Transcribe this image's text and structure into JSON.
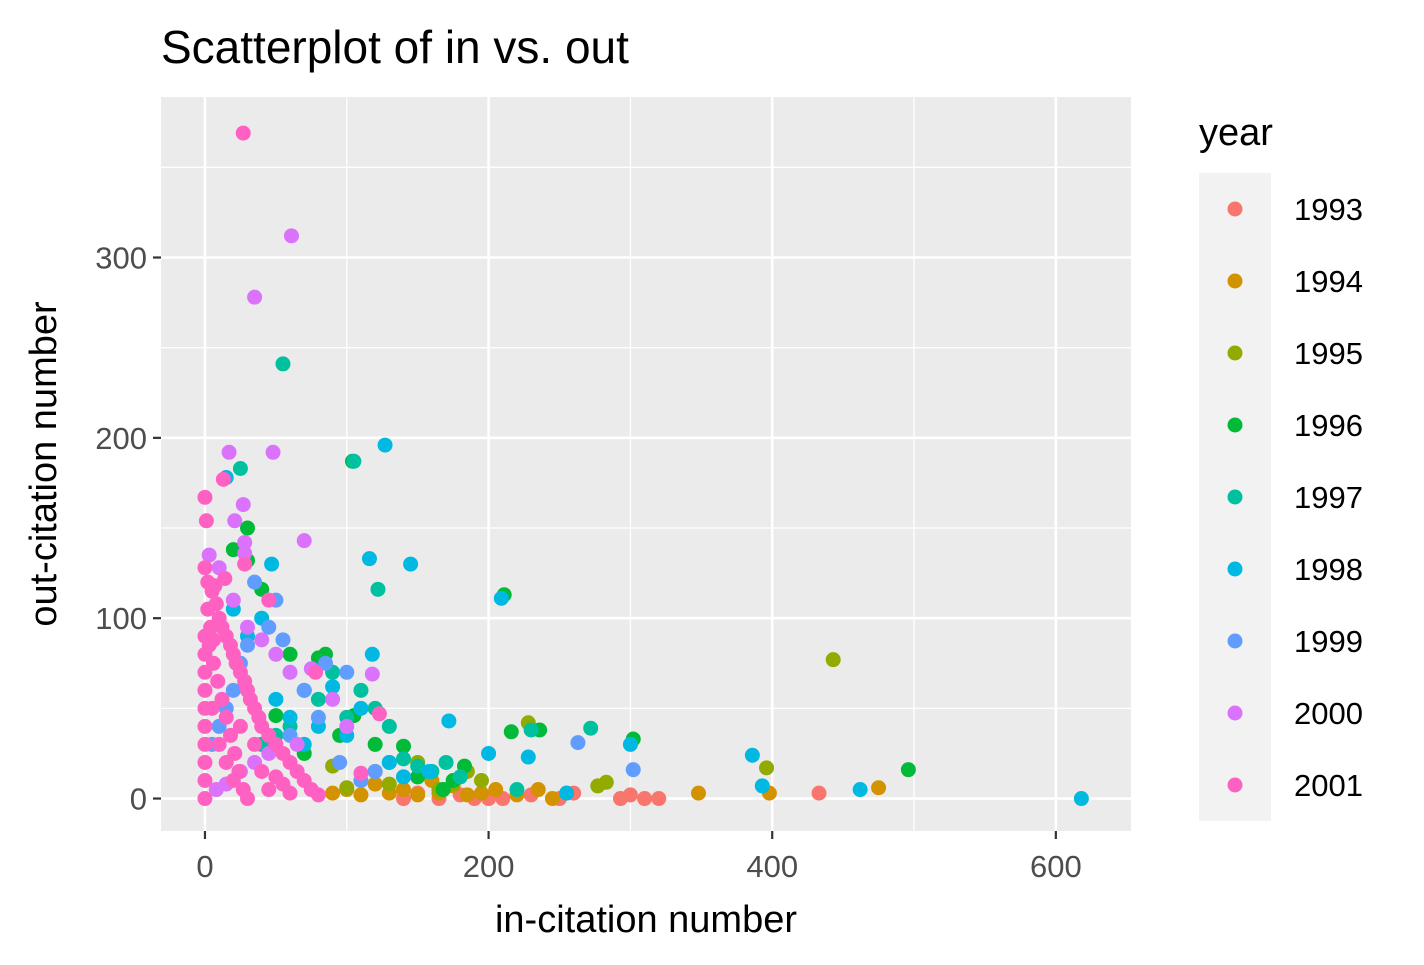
{
  "chart_data": {
    "type": "scatter",
    "title": "Scatterplot of in vs. out",
    "xlabel": "in-citation number",
    "ylabel": "out-citation number",
    "xlim": [
      -31,
      653
    ],
    "ylim": [
      -18,
      389
    ],
    "x_ticks": [
      0,
      200,
      400,
      600
    ],
    "y_ticks": [
      0,
      100,
      200,
      300
    ],
    "x_tick_labels": [
      "0",
      "200",
      "400",
      "600"
    ],
    "y_tick_labels": [
      "0",
      "100",
      "200",
      "300"
    ],
    "grid": true,
    "legend": {
      "title": "year",
      "placement": "right"
    },
    "series": [
      {
        "name": "1993",
        "color": "#F8766D",
        "points": [
          [
            433,
            3
          ],
          [
            320,
            0
          ],
          [
            310,
            0
          ],
          [
            300,
            2
          ],
          [
            293,
            0
          ],
          [
            260,
            3
          ],
          [
            250,
            0
          ],
          [
            230,
            2
          ],
          [
            210,
            0
          ],
          [
            200,
            0
          ],
          [
            190,
            0
          ],
          [
            180,
            2
          ],
          [
            165,
            0
          ],
          [
            150,
            3
          ],
          [
            140,
            0
          ]
        ]
      },
      {
        "name": "1994",
        "color": "#D39200",
        "points": [
          [
            475,
            6
          ],
          [
            398,
            3
          ],
          [
            348,
            3
          ],
          [
            255,
            3
          ],
          [
            245,
            0
          ],
          [
            235,
            5
          ],
          [
            220,
            2
          ],
          [
            205,
            5
          ],
          [
            195,
            3
          ],
          [
            185,
            2
          ],
          [
            175,
            7
          ],
          [
            165,
            3
          ],
          [
            160,
            10
          ],
          [
            150,
            2
          ],
          [
            140,
            5
          ],
          [
            130,
            3
          ],
          [
            120,
            8
          ],
          [
            110,
            2
          ],
          [
            100,
            5
          ],
          [
            90,
            3
          ]
        ]
      },
      {
        "name": "1995",
        "color": "#93AA00",
        "points": [
          [
            443,
            77
          ],
          [
            396,
            17
          ],
          [
            283,
            9
          ],
          [
            277,
            7
          ],
          [
            228,
            42
          ],
          [
            195,
            10
          ],
          [
            185,
            15
          ],
          [
            175,
            8
          ],
          [
            165,
            5
          ],
          [
            150,
            20
          ],
          [
            140,
            12
          ],
          [
            130,
            8
          ],
          [
            120,
            15
          ],
          [
            110,
            10
          ],
          [
            100,
            6
          ],
          [
            90,
            18
          ]
        ]
      },
      {
        "name": "1996",
        "color": "#00BA38",
        "points": [
          [
            496,
            16
          ],
          [
            302,
            33
          ],
          [
            236,
            38
          ],
          [
            216,
            37
          ],
          [
            211,
            113
          ],
          [
            183,
            18
          ],
          [
            175,
            10
          ],
          [
            168,
            5
          ],
          [
            150,
            12
          ],
          [
            140,
            29
          ],
          [
            130,
            20
          ],
          [
            120,
            30
          ],
          [
            105,
            46
          ],
          [
            95,
            35
          ],
          [
            85,
            80
          ],
          [
            80,
            78
          ],
          [
            70,
            25
          ],
          [
            60,
            80
          ],
          [
            50,
            46
          ],
          [
            30,
            150
          ],
          [
            20,
            138
          ],
          [
            40,
            116
          ],
          [
            30,
            132
          ],
          [
            104,
            187
          ]
        ]
      },
      {
        "name": "1997",
        "color": "#00C19F",
        "points": [
          [
            55,
            241
          ],
          [
            25,
            183
          ],
          [
            105,
            187
          ],
          [
            122,
            116
          ],
          [
            272,
            39
          ],
          [
            230,
            38
          ],
          [
            220,
            5
          ],
          [
            180,
            12
          ],
          [
            170,
            20
          ],
          [
            160,
            15
          ],
          [
            150,
            18
          ],
          [
            140,
            22
          ],
          [
            130,
            40
          ],
          [
            120,
            50
          ],
          [
            110,
            60
          ],
          [
            100,
            45
          ],
          [
            90,
            70
          ],
          [
            80,
            55
          ],
          [
            70,
            60
          ],
          [
            60,
            40
          ],
          [
            50,
            35
          ],
          [
            40,
            30
          ]
        ]
      },
      {
        "name": "1998",
        "color": "#00B9E3",
        "points": [
          [
            127,
            196
          ],
          [
            116,
            133
          ],
          [
            145,
            130
          ],
          [
            47,
            130
          ],
          [
            209,
            111
          ],
          [
            618,
            0
          ],
          [
            462,
            5
          ],
          [
            393,
            7
          ],
          [
            386,
            24
          ],
          [
            300,
            30
          ],
          [
            255,
            3
          ],
          [
            228,
            23
          ],
          [
            200,
            25
          ],
          [
            172,
            43
          ],
          [
            158,
            15
          ],
          [
            140,
            12
          ],
          [
            130,
            20
          ],
          [
            118,
            80
          ],
          [
            110,
            50
          ],
          [
            100,
            35
          ],
          [
            90,
            62
          ],
          [
            80,
            40
          ],
          [
            70,
            30
          ],
          [
            60,
            45
          ],
          [
            50,
            55
          ],
          [
            40,
            100
          ],
          [
            30,
            90
          ],
          [
            20,
            105
          ],
          [
            15,
            178
          ]
        ]
      },
      {
        "name": "1999",
        "color": "#619CFF",
        "points": [
          [
            263,
            31
          ],
          [
            302,
            16
          ],
          [
            85,
            75
          ],
          [
            100,
            70
          ],
          [
            70,
            60
          ],
          [
            55,
            88
          ],
          [
            50,
            110
          ],
          [
            45,
            95
          ],
          [
            35,
            120
          ],
          [
            30,
            85
          ],
          [
            25,
            75
          ],
          [
            20,
            60
          ],
          [
            15,
            50
          ],
          [
            10,
            40
          ],
          [
            5,
            30
          ],
          [
            60,
            35
          ],
          [
            80,
            45
          ],
          [
            95,
            20
          ],
          [
            110,
            10
          ],
          [
            120,
            15
          ]
        ]
      },
      {
        "name": "2000",
        "color": "#DB72FB",
        "points": [
          [
            61,
            312
          ],
          [
            35,
            278
          ],
          [
            17,
            192
          ],
          [
            48,
            192
          ],
          [
            70,
            143
          ],
          [
            27,
            163
          ],
          [
            21,
            154
          ],
          [
            28,
            142
          ],
          [
            28,
            136
          ],
          [
            3,
            135
          ],
          [
            10,
            128
          ],
          [
            20,
            110
          ],
          [
            30,
            95
          ],
          [
            40,
            88
          ],
          [
            50,
            80
          ],
          [
            60,
            70
          ],
          [
            118,
            69
          ],
          [
            75,
            72
          ],
          [
            90,
            55
          ],
          [
            100,
            40
          ],
          [
            65,
            30
          ],
          [
            45,
            25
          ],
          [
            35,
            20
          ],
          [
            25,
            15
          ],
          [
            15,
            8
          ],
          [
            8,
            5
          ]
        ]
      },
      {
        "name": "2001",
        "color": "#FF61C3",
        "points": [
          [
            27,
            369
          ],
          [
            0,
            167
          ],
          [
            1,
            154
          ],
          [
            13,
            177
          ],
          [
            0,
            128
          ],
          [
            2,
            120
          ],
          [
            5,
            115
          ],
          [
            8,
            108
          ],
          [
            10,
            100
          ],
          [
            12,
            95
          ],
          [
            15,
            90
          ],
          [
            18,
            85
          ],
          [
            20,
            80
          ],
          [
            22,
            75
          ],
          [
            25,
            70
          ],
          [
            28,
            65
          ],
          [
            30,
            60
          ],
          [
            32,
            55
          ],
          [
            35,
            50
          ],
          [
            38,
            45
          ],
          [
            40,
            40
          ],
          [
            45,
            35
          ],
          [
            50,
            30
          ],
          [
            55,
            25
          ],
          [
            60,
            20
          ],
          [
            65,
            15
          ],
          [
            70,
            10
          ],
          [
            75,
            5
          ],
          [
            80,
            2
          ],
          [
            0,
            90
          ],
          [
            0,
            80
          ],
          [
            0,
            70
          ],
          [
            0,
            60
          ],
          [
            0,
            50
          ],
          [
            0,
            40
          ],
          [
            0,
            30
          ],
          [
            0,
            20
          ],
          [
            0,
            10
          ],
          [
            0,
            0
          ],
          [
            3,
            85
          ],
          [
            6,
            75
          ],
          [
            9,
            65
          ],
          [
            12,
            55
          ],
          [
            15,
            45
          ],
          [
            18,
            35
          ],
          [
            21,
            25
          ],
          [
            24,
            15
          ],
          [
            27,
            5
          ],
          [
            30,
            0
          ],
          [
            5,
            50
          ],
          [
            10,
            30
          ],
          [
            15,
            20
          ],
          [
            20,
            10
          ],
          [
            25,
            40
          ],
          [
            35,
            30
          ],
          [
            40,
            15
          ],
          [
            45,
            5
          ],
          [
            50,
            12
          ],
          [
            55,
            8
          ],
          [
            60,
            3
          ],
          [
            123,
            47
          ],
          [
            110,
            14
          ],
          [
            78,
            70
          ],
          [
            45,
            110
          ],
          [
            28,
            130
          ],
          [
            7,
            118
          ],
          [
            14,
            122
          ],
          [
            2,
            105
          ],
          [
            4,
            95
          ],
          [
            6,
            88
          ]
        ]
      }
    ]
  }
}
